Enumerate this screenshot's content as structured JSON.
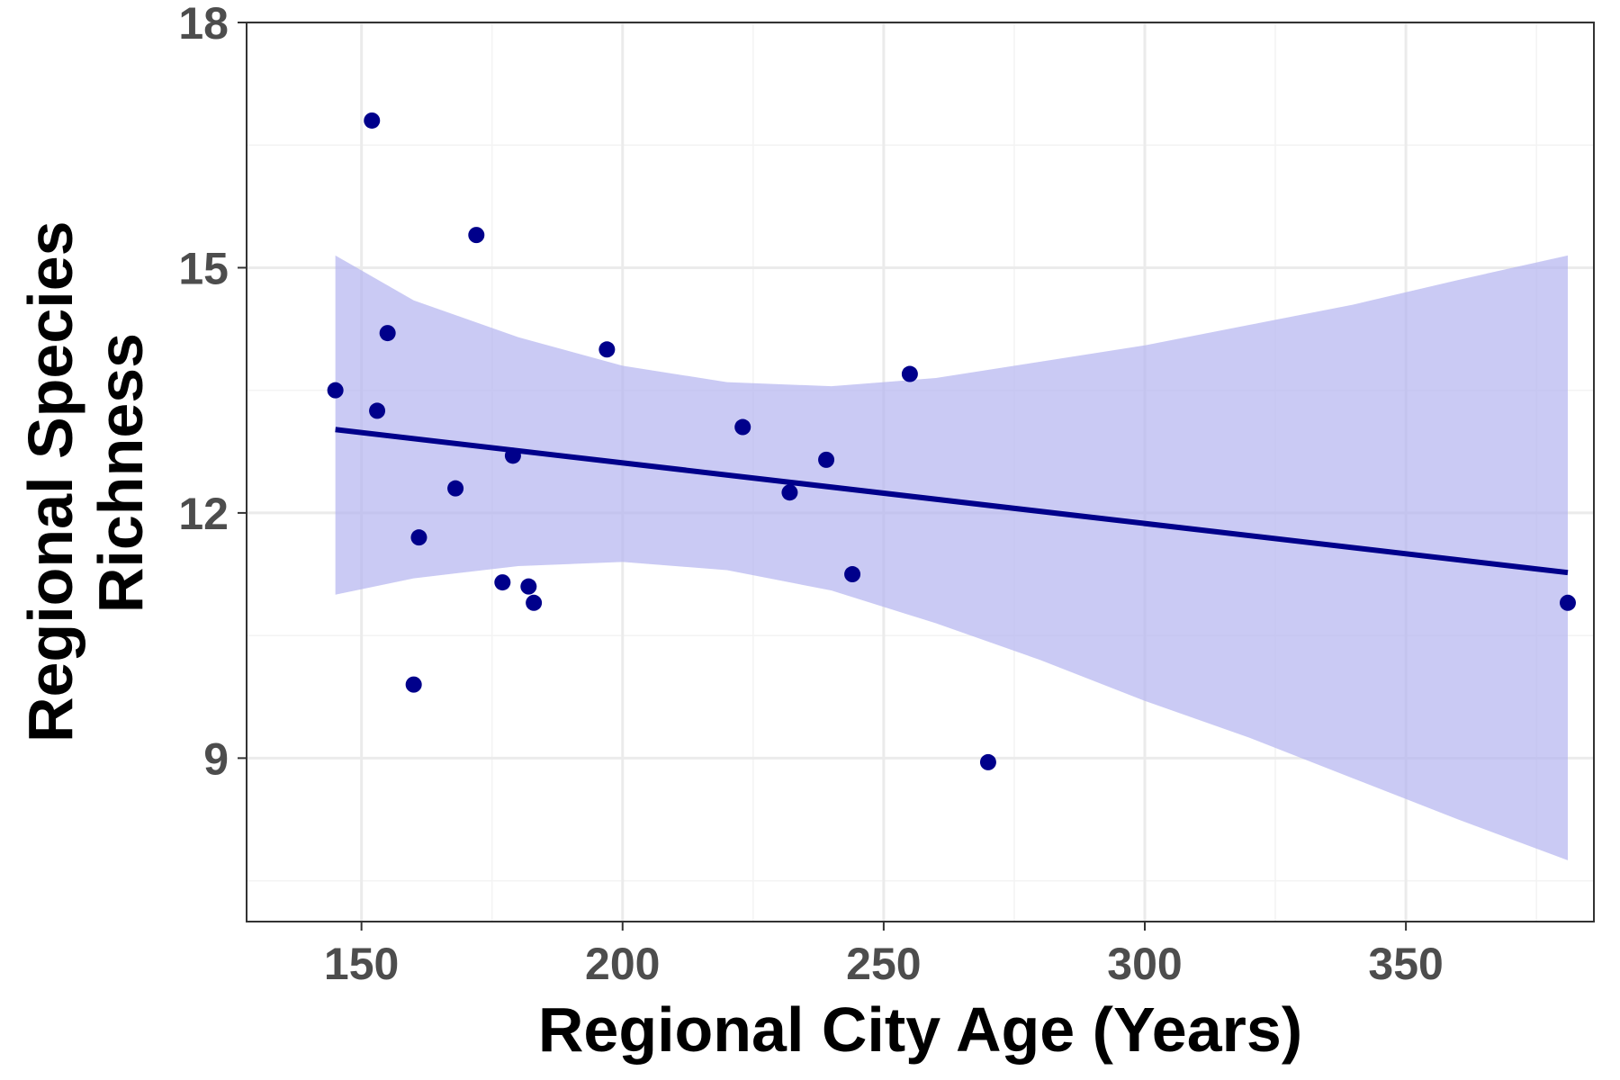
{
  "chart_data": {
    "type": "scatter",
    "title": "",
    "xlabel": "Regional City Age (Years)",
    "ylabel_lines": [
      "Regional Species",
      "Richness"
    ],
    "xlim": [
      128,
      386
    ],
    "ylim": [
      7.0,
      18.0
    ],
    "x_ticks": [
      150,
      200,
      250,
      300,
      350
    ],
    "x_tick_labels": [
      "150",
      "200",
      "250",
      "300",
      "350"
    ],
    "y_ticks": [
      9,
      12,
      15,
      18
    ],
    "y_tick_labels": [
      "9",
      "12",
      "15",
      "18"
    ],
    "x_minor_grid": [
      175,
      225,
      275,
      325,
      375
    ],
    "y_minor_grid": [
      7.5,
      10.5,
      13.5,
      16.5
    ],
    "grid": true,
    "legend": "none",
    "points": [
      {
        "x": 145,
        "y": 13.5
      },
      {
        "x": 152,
        "y": 16.8
      },
      {
        "x": 153,
        "y": 13.25
      },
      {
        "x": 155,
        "y": 14.2
      },
      {
        "x": 160,
        "y": 9.9
      },
      {
        "x": 161,
        "y": 11.7
      },
      {
        "x": 168,
        "y": 12.3
      },
      {
        "x": 172,
        "y": 15.4
      },
      {
        "x": 177,
        "y": 11.15
      },
      {
        "x": 179,
        "y": 12.7
      },
      {
        "x": 182,
        "y": 11.1
      },
      {
        "x": 183,
        "y": 10.9
      },
      {
        "x": 197,
        "y": 14.0
      },
      {
        "x": 223,
        "y": 13.05
      },
      {
        "x": 232,
        "y": 12.25
      },
      {
        "x": 239,
        "y": 12.65
      },
      {
        "x": 244,
        "y": 11.25
      },
      {
        "x": 255,
        "y": 13.7
      },
      {
        "x": 270,
        "y": 8.95
      },
      {
        "x": 381,
        "y": 10.9
      }
    ],
    "fit_line": {
      "x": [
        145,
        381
      ],
      "y": [
        13.02,
        11.27
      ]
    },
    "confidence_band": {
      "x": [
        145,
        160,
        180,
        200,
        220,
        240,
        260,
        280,
        300,
        320,
        340,
        360,
        381
      ],
      "upper": [
        15.15,
        14.6,
        14.15,
        13.8,
        13.6,
        13.55,
        13.65,
        13.85,
        14.05,
        14.3,
        14.55,
        14.85,
        15.15
      ],
      "lower": [
        11.0,
        11.2,
        11.35,
        11.4,
        11.3,
        11.05,
        10.65,
        10.2,
        9.7,
        9.25,
        8.75,
        8.25,
        7.75
      ]
    },
    "colors": {
      "points": "#00008B",
      "line": "#00008B",
      "band": "#b3b3f0",
      "grid_major": "#ebebeb",
      "grid_minor": "#f3f3f3",
      "panel_border": "#333333"
    }
  }
}
